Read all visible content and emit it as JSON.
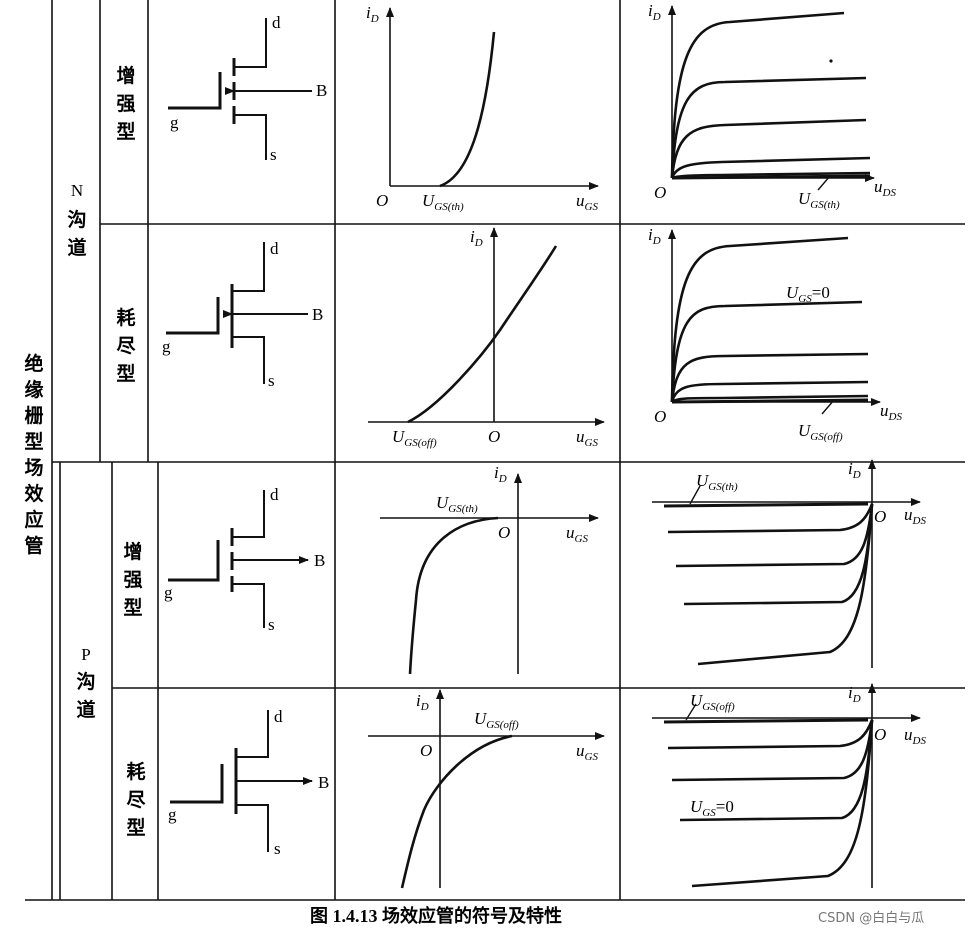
{
  "classification": {
    "main": "绝缘栅型场效应管",
    "n_channel": "N沟道",
    "p_channel": "P沟道",
    "enhancement": "增强型",
    "depletion": "耗尽型"
  },
  "terminals": {
    "drain": "d",
    "gate": "g",
    "source": "s",
    "body": "B"
  },
  "axes": {
    "origin": "O",
    "id_var": "i",
    "id_sub": "D",
    "ugs_var": "u",
    "ugs_sub": "GS",
    "uds_var": "u",
    "uds_sub": "DS"
  },
  "params": {
    "ugs_th_var": "U",
    "ugs_th_sub": "GS(th)",
    "ugs_off_var": "U",
    "ugs_off_sub": "GS(off)",
    "ugs0_var": "U",
    "ugs0_sub": "GS",
    "ugs0_eq": "=0"
  },
  "caption": "图 1.4.13   场效应管的符号及特性",
  "watermark": "CSDN @白白与瓜"
}
